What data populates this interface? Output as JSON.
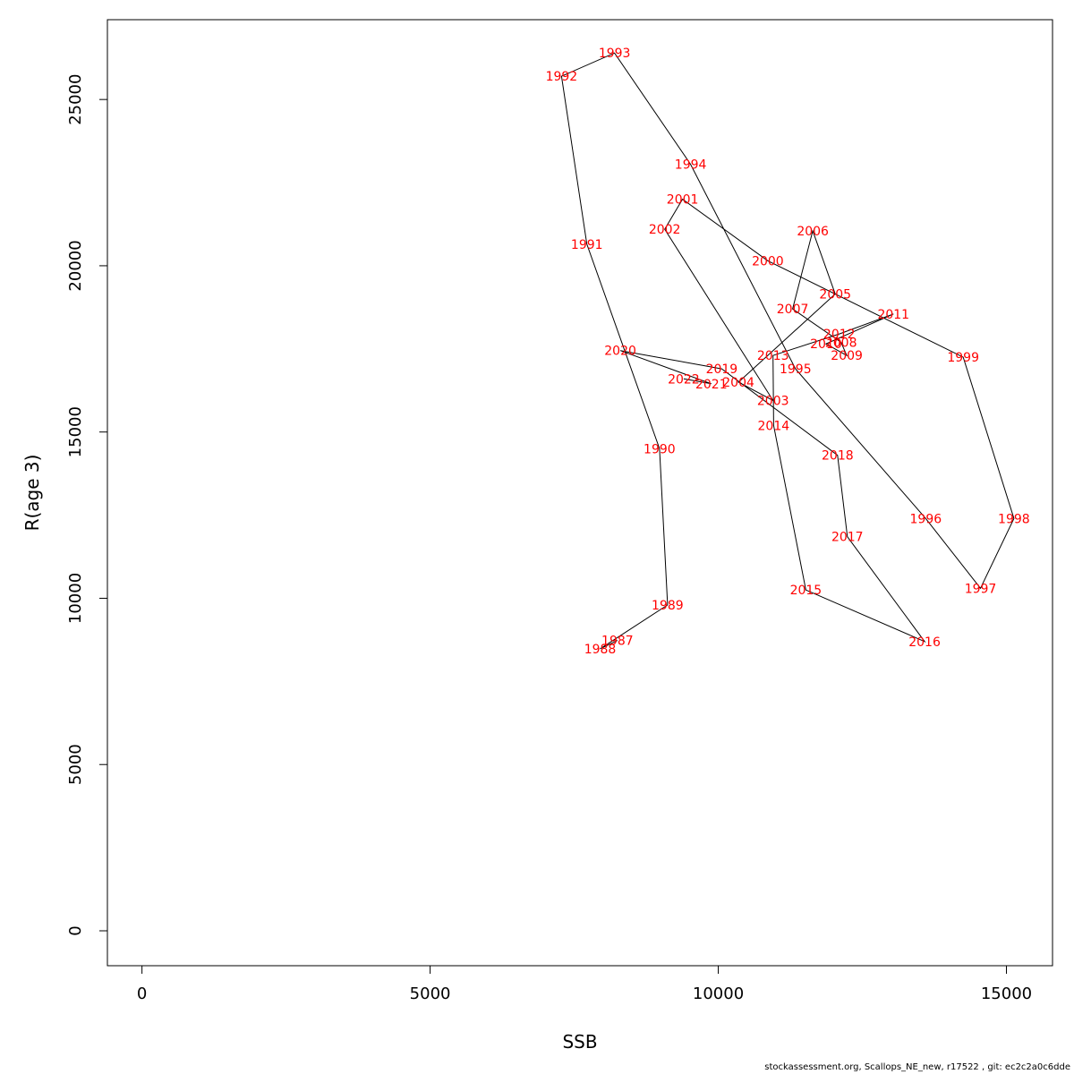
{
  "footer": {
    "text": "stockassessment.org, Scallops_NE_new, r17522 , git: ec2c2a0c6dde"
  },
  "chart_data": {
    "type": "scatter",
    "title": "",
    "xlabel": "SSB",
    "ylabel": "R(age 3)",
    "xlim": [
      -600,
      15800
    ],
    "ylim": [
      -1050,
      27400
    ],
    "xticks": [
      0,
      5000,
      10000,
      15000
    ],
    "yticks": [
      0,
      5000,
      10000,
      15000,
      20000,
      25000
    ],
    "grid": false,
    "legend": "none",
    "colors": {
      "points": "#ff0000",
      "line": "#000000"
    },
    "points": [
      {
        "label": "1987",
        "x": 8250,
        "y": 8730
      },
      {
        "label": "1988",
        "x": 7950,
        "y": 8480
      },
      {
        "label": "1989",
        "x": 9120,
        "y": 9800
      },
      {
        "label": "1990",
        "x": 8980,
        "y": 14500
      },
      {
        "label": "1991",
        "x": 7720,
        "y": 20650
      },
      {
        "label": "1992",
        "x": 7280,
        "y": 25700
      },
      {
        "label": "1993",
        "x": 8200,
        "y": 26400
      },
      {
        "label": "1994",
        "x": 9520,
        "y": 23050
      },
      {
        "label": "1995",
        "x": 11340,
        "y": 16900
      },
      {
        "label": "1996",
        "x": 13600,
        "y": 12400
      },
      {
        "label": "1997",
        "x": 14550,
        "y": 10300
      },
      {
        "label": "1998",
        "x": 15130,
        "y": 12400
      },
      {
        "label": "1999",
        "x": 14250,
        "y": 17250
      },
      {
        "label": "2000",
        "x": 10860,
        "y": 20150
      },
      {
        "label": "2001",
        "x": 9380,
        "y": 22000
      },
      {
        "label": "2002",
        "x": 9070,
        "y": 21100
      },
      {
        "label": "2003",
        "x": 10950,
        "y": 15950
      },
      {
        "label": "2004",
        "x": 10350,
        "y": 16500
      },
      {
        "label": "2005",
        "x": 12030,
        "y": 19150
      },
      {
        "label": "2006",
        "x": 11640,
        "y": 21050
      },
      {
        "label": "2007",
        "x": 11290,
        "y": 18700
      },
      {
        "label": "2008",
        "x": 12130,
        "y": 17700
      },
      {
        "label": "2009",
        "x": 12230,
        "y": 17300
      },
      {
        "label": "2010",
        "x": 11870,
        "y": 17650
      },
      {
        "label": "2011",
        "x": 13040,
        "y": 18550
      },
      {
        "label": "2012",
        "x": 12100,
        "y": 17950
      },
      {
        "label": "2013",
        "x": 10950,
        "y": 17300
      },
      {
        "label": "2014",
        "x": 10960,
        "y": 15200
      },
      {
        "label": "2015",
        "x": 11520,
        "y": 10250
      },
      {
        "label": "2016",
        "x": 13580,
        "y": 8700
      },
      {
        "label": "2017",
        "x": 12240,
        "y": 11850
      },
      {
        "label": "2018",
        "x": 12070,
        "y": 14300
      },
      {
        "label": "2019",
        "x": 10060,
        "y": 16900
      },
      {
        "label": "2020",
        "x": 8300,
        "y": 17450
      },
      {
        "label": "2021",
        "x": 9880,
        "y": 16450
      },
      {
        "label": "2022",
        "x": 9400,
        "y": 16600
      }
    ]
  }
}
